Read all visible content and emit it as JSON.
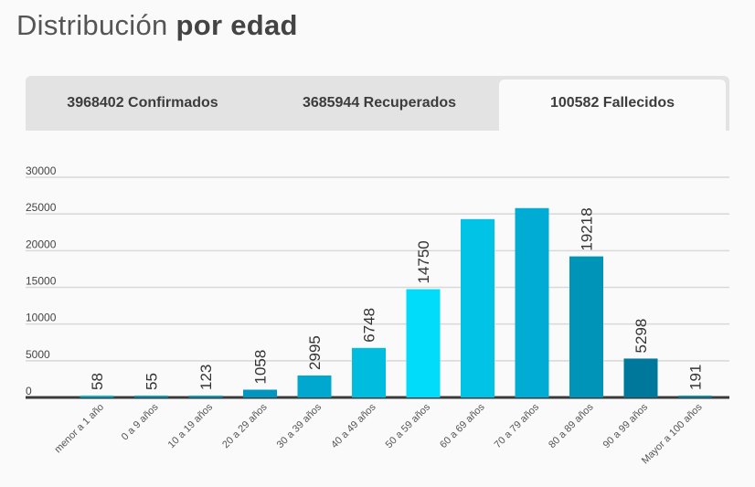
{
  "title": {
    "light": "Distribución",
    "bold": "por edad"
  },
  "tabs": [
    {
      "label": "3968402 Confirmados",
      "active": false
    },
    {
      "label": "3685944 Recuperados",
      "active": false
    },
    {
      "label": "100582 Fallecidos",
      "active": true
    }
  ],
  "chart_data": {
    "type": "bar",
    "categories": [
      "menor a 1 año",
      "0 a 9 años",
      "10 a 19 años",
      "20 a 29 años",
      "30 a 39 años",
      "40 a 49 años",
      "50 a 59 años",
      "60 a 69 años",
      "70 a 79 años",
      "80 a 89 años",
      "90 a 99 años",
      "Mayor a 100 años"
    ],
    "values": [
      58,
      55,
      123,
      1058,
      2995,
      6748,
      14750,
      24300,
      25800,
      19218,
      5298,
      191
    ],
    "data_labels": [
      "58",
      "55",
      "123",
      "1058",
      "2995",
      "6748",
      "14750",
      "",
      "",
      "19218",
      "5298",
      "191"
    ],
    "ylim": [
      0,
      30000
    ],
    "yticks": [
      0,
      5000,
      10000,
      15000,
      20000,
      25000,
      30000
    ],
    "colors": [
      "#00b4d8",
      "#00a0c8",
      "#00a0c8",
      "#0096c0",
      "#00a8d0",
      "#00bde0",
      "#00dcfa",
      "#00c3e6",
      "#00acd4",
      "#0094b8",
      "#00789c",
      "#0090b8"
    ],
    "grid": true,
    "xlabel": "",
    "ylabel": ""
  }
}
